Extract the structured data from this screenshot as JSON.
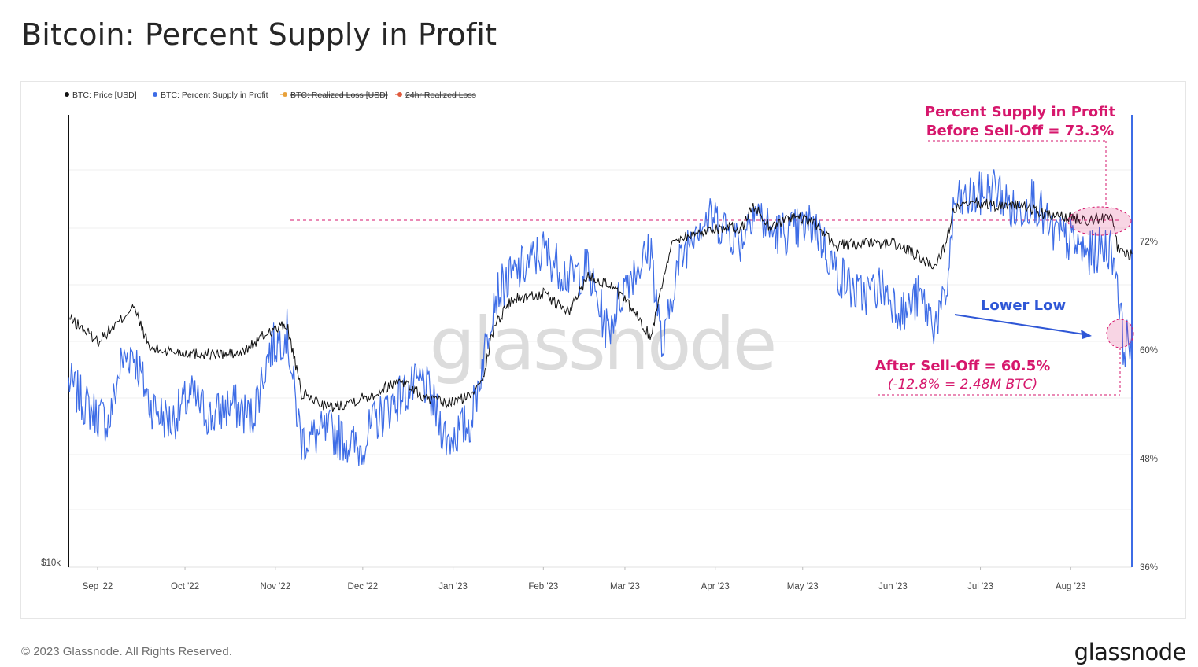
{
  "title": "Bitcoin: Percent Supply in Profit",
  "footer": {
    "copyright": "© 2023 Glassnode. All Rights Reserved.",
    "logo": "glassnode"
  },
  "watermark": "glassnode",
  "colors": {
    "price": "#111111",
    "supply": "#3d6ce6",
    "annotation": "#d6176c",
    "annotation_blue": "#2f57d6",
    "realized_loss": "#e8a23c",
    "realized_loss_24h": "#e05a3c"
  },
  "chart_data": {
    "type": "line",
    "legend": [
      {
        "label": "BTC: Price [USD]",
        "color": "#111111",
        "active": true
      },
      {
        "label": "BTC: Percent Supply in Profit",
        "color": "#3d6ce6",
        "active": true
      },
      {
        "label": "BTC: Realized Loss [USD]",
        "color": "#e8a23c",
        "active": false
      },
      {
        "label": "24hr Realized Loss",
        "color": "#e05a3c",
        "active": false
      }
    ],
    "x_ticks": [
      "Sep '22",
      "Oct '22",
      "Nov '22",
      "Dec '22",
      "Jan '23",
      "Feb '23",
      "Mar '23",
      "Apr '23",
      "May '23",
      "Jun '23",
      "Jul '23",
      "Aug '23"
    ],
    "x_range": [
      "2022-08-22",
      "2023-08-22"
    ],
    "y_left": {
      "label_bottom": "$10k",
      "scale": "log"
    },
    "y_right": {
      "ticks": [
        "72%",
        "60%",
        "48%",
        "36%"
      ],
      "tick_values": [
        72,
        60,
        48,
        36
      ],
      "range": [
        36,
        86
      ]
    },
    "series": [
      {
        "name": "BTC: Percent Supply in Profit",
        "axis": "right",
        "x": [
          "2022-08-22",
          "2022-08-29",
          "2022-09-05",
          "2022-09-09",
          "2022-09-13",
          "2022-09-19",
          "2022-09-26",
          "2022-10-03",
          "2022-10-10",
          "2022-10-17",
          "2022-10-24",
          "2022-10-30",
          "2022-11-05",
          "2022-11-08",
          "2022-11-10",
          "2022-11-20",
          "2022-11-30",
          "2022-12-05",
          "2022-12-14",
          "2022-12-22",
          "2022-12-30",
          "2023-01-07",
          "2023-01-12",
          "2023-01-15",
          "2023-01-21",
          "2023-02-01",
          "2023-02-10",
          "2023-02-16",
          "2023-02-23",
          "2023-03-02",
          "2023-03-10",
          "2023-03-14",
          "2023-03-18",
          "2023-03-25",
          "2023-04-01",
          "2023-04-10",
          "2023-04-14",
          "2023-04-20",
          "2023-04-27",
          "2023-05-05",
          "2023-05-12",
          "2023-05-20",
          "2023-05-28",
          "2023-06-05",
          "2023-06-10",
          "2023-06-15",
          "2023-06-19",
          "2023-06-22",
          "2023-06-30",
          "2023-07-06",
          "2023-07-13",
          "2023-07-19",
          "2023-07-25",
          "2023-08-01",
          "2023-08-07",
          "2023-08-14",
          "2023-08-16",
          "2023-08-17",
          "2023-08-19",
          "2023-08-22"
        ],
        "values": [
          56.5,
          53.5,
          52,
          58.5,
          60,
          54,
          52,
          55,
          52.5,
          54,
          52.5,
          60,
          62,
          54,
          50,
          51,
          49,
          52,
          55,
          56.5,
          50,
          52,
          60,
          66,
          68,
          71,
          68,
          69,
          62,
          68,
          71,
          59.5,
          68,
          74,
          74.5,
          72,
          76,
          73,
          73,
          74,
          69,
          66,
          67,
          64,
          66,
          63,
          65,
          76,
          77,
          78,
          75,
          77,
          73,
          72,
          70.5,
          71.5,
          70,
          68,
          60.5,
          61.5
        ]
      },
      {
        "name": "BTC: Price [USD]",
        "axis": "left",
        "x": [
          "2022-08-22",
          "2022-09-01",
          "2022-09-09",
          "2022-09-13",
          "2022-09-19",
          "2022-10-01",
          "2022-10-10",
          "2022-10-20",
          "2022-10-30",
          "2022-11-05",
          "2022-11-08",
          "2022-11-10",
          "2022-11-20",
          "2022-12-05",
          "2022-12-14",
          "2022-12-22",
          "2022-12-30",
          "2023-01-07",
          "2023-01-12",
          "2023-01-15",
          "2023-01-21",
          "2023-02-01",
          "2023-02-10",
          "2023-02-16",
          "2023-02-23",
          "2023-03-02",
          "2023-03-10",
          "2023-03-14",
          "2023-03-18",
          "2023-03-25",
          "2023-04-01",
          "2023-04-10",
          "2023-04-14",
          "2023-04-20",
          "2023-04-27",
          "2023-05-05",
          "2023-05-12",
          "2023-05-20",
          "2023-06-01",
          "2023-06-10",
          "2023-06-15",
          "2023-06-19",
          "2023-06-22",
          "2023-06-30",
          "2023-07-06",
          "2023-07-13",
          "2023-07-19",
          "2023-07-25",
          "2023-08-01",
          "2023-08-07",
          "2023-08-14",
          "2023-08-16",
          "2023-08-17",
          "2023-08-19",
          "2023-08-22"
        ],
        "values": [
          21500,
          20000,
          21300,
          22300,
          19500,
          19300,
          19200,
          19200,
          20600,
          21000,
          18500,
          17000,
          16300,
          17000,
          17800,
          16800,
          16500,
          16900,
          18300,
          20900,
          22700,
          23100,
          21800,
          24400,
          23900,
          22400,
          20200,
          24200,
          27400,
          27700,
          28300,
          28200,
          30300,
          28300,
          29300,
          28800,
          26800,
          26900,
          27000,
          25900,
          25100,
          26800,
          30000,
          30500,
          30300,
          30400,
          29900,
          29300,
          29200,
          29000,
          29300,
          28800,
          26600,
          26100,
          26100
        ]
      }
    ],
    "annotations": [
      {
        "label": "Percent Supply in Profit",
        "value": "Before Sell-Off = 73.3%"
      },
      {
        "label": "Lower Low"
      },
      {
        "label": "After Sell-Off = 60.5%",
        "value": "(-12.8% = 2.48M BTC)"
      }
    ]
  }
}
